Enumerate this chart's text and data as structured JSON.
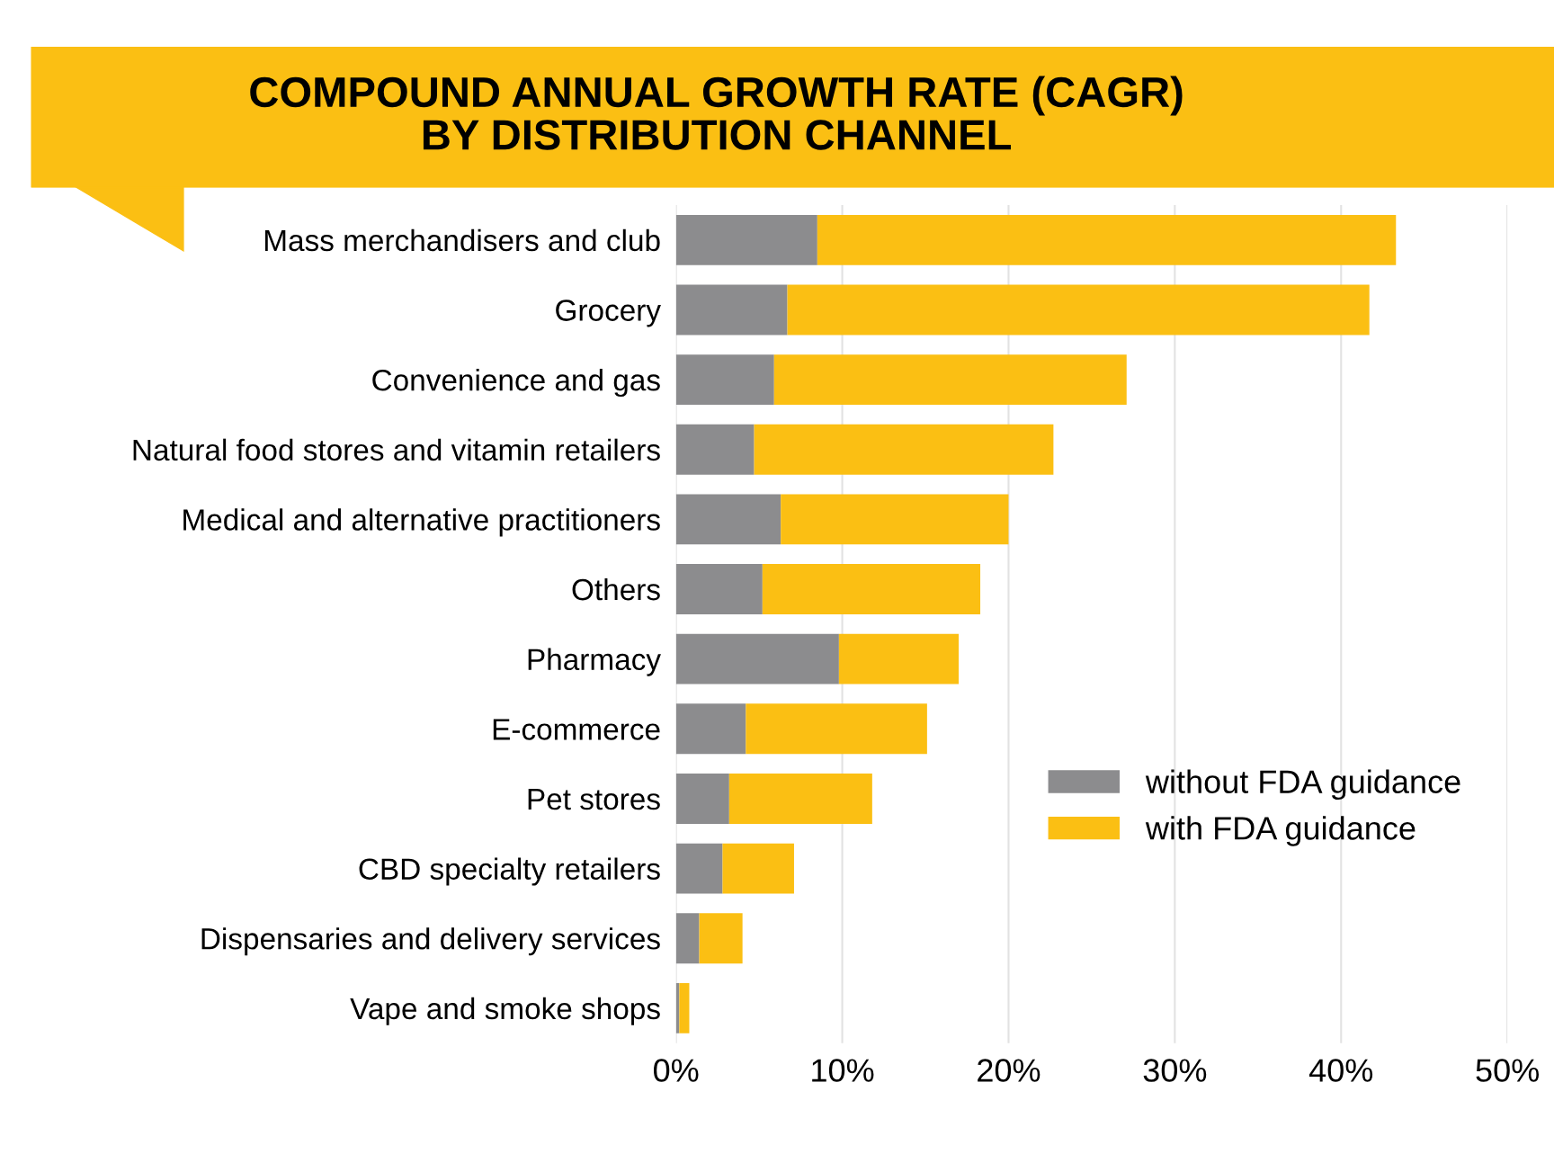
{
  "chart_data": {
    "type": "bar",
    "orientation": "horizontal",
    "stacked": true,
    "title": "COMPOUND ANNUAL GROWTH RATE (CAGR)\nBY DISTRIBUTION CHANNEL",
    "categories": [
      "Mass merchandisers and club",
      "Grocery",
      "Convenience and gas",
      "Natural food stores and vitamin retailers",
      "Medical and alternative practitioners",
      "Others",
      "Pharmacy",
      "E-commerce",
      "Pet stores",
      "CBD specialty retailers",
      "Dispensaries and delivery services",
      "Vape and smoke shops"
    ],
    "series": [
      {
        "name": "without FDA guidance",
        "color": "#8c8c8e",
        "values": [
          8.5,
          6.7,
          5.9,
          4.7,
          6.3,
          5.2,
          9.8,
          4.2,
          3.2,
          2.8,
          1.4,
          0.2
        ]
      },
      {
        "name": "with FDA guidance",
        "color": "#fbbf13",
        "values": [
          34.8,
          35.0,
          21.2,
          18.0,
          13.7,
          13.1,
          7.2,
          10.9,
          8.6,
          4.3,
          2.6,
          0.6
        ]
      }
    ],
    "xlim": [
      0,
      50
    ],
    "xticks": [
      {
        "value": 0,
        "label": "0%"
      },
      {
        "value": 10,
        "label": "10%"
      },
      {
        "value": 20,
        "label": "20%"
      },
      {
        "value": 30,
        "label": "30%"
      },
      {
        "value": 40,
        "label": "40%"
      },
      {
        "value": 50,
        "label": "50%"
      }
    ],
    "grid": "x",
    "legend": "bottom right"
  }
}
